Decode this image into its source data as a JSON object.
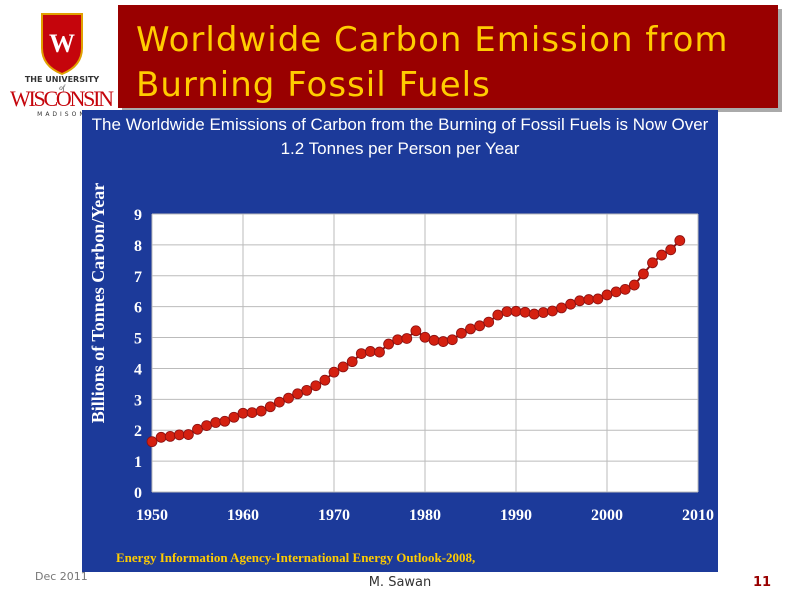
{
  "slide": {
    "title": "Worldwide Carbon Emission from Burning Fossil Fuels",
    "logo": {
      "line1": "THE UNIVERSITY",
      "line2": "of",
      "line3": "WISCONSIN",
      "line4": "MADISON"
    },
    "footer": {
      "date": "Dec 2011",
      "author": "M. Sawan",
      "page": "11"
    }
  },
  "chart_data": {
    "type": "line",
    "title": "The Worldwide Emissions of Carbon from the Burning of Fossil Fuels is Now Over 1.2 Tonnes per Person per Year",
    "y_label": "Billions of Tonnes Carbon/Year",
    "source": "Energy Information Agency-International Energy Outlook-2008,",
    "x": [
      1950,
      1951,
      1952,
      1953,
      1954,
      1955,
      1956,
      1957,
      1958,
      1959,
      1960,
      1961,
      1962,
      1963,
      1964,
      1965,
      1966,
      1967,
      1968,
      1969,
      1970,
      1971,
      1972,
      1973,
      1974,
      1975,
      1976,
      1977,
      1978,
      1979,
      1980,
      1981,
      1982,
      1983,
      1984,
      1985,
      1986,
      1987,
      1988,
      1989,
      1990,
      1991,
      1992,
      1993,
      1994,
      1995,
      1996,
      1997,
      1998,
      1999,
      2000,
      2001,
      2002,
      2003,
      2004,
      2005,
      2006,
      2007,
      2008
    ],
    "values": [
      1.63,
      1.77,
      1.8,
      1.85,
      1.86,
      2.03,
      2.15,
      2.25,
      2.29,
      2.42,
      2.55,
      2.57,
      2.62,
      2.76,
      2.91,
      3.04,
      3.18,
      3.29,
      3.44,
      3.62,
      3.88,
      4.05,
      4.22,
      4.48,
      4.55,
      4.53,
      4.79,
      4.93,
      4.97,
      5.22,
      5.01,
      4.91,
      4.87,
      4.93,
      5.14,
      5.28,
      5.38,
      5.5,
      5.73,
      5.84,
      5.85,
      5.82,
      5.76,
      5.81,
      5.86,
      5.96,
      6.08,
      6.19,
      6.23,
      6.25,
      6.38,
      6.48,
      6.56,
      6.7,
      7.06,
      7.42,
      7.67,
      7.84,
      8.14
    ],
    "color": "#d42010",
    "line_color": "#8a1010",
    "xlim": [
      1950,
      2010
    ],
    "xticks": [
      1950,
      1960,
      1970,
      1980,
      1990,
      2000,
      2010
    ],
    "ylim": [
      0,
      9
    ],
    "yticks": [
      0,
      1,
      2,
      3,
      4,
      5,
      6,
      7,
      8,
      9
    ],
    "grid": true
  }
}
